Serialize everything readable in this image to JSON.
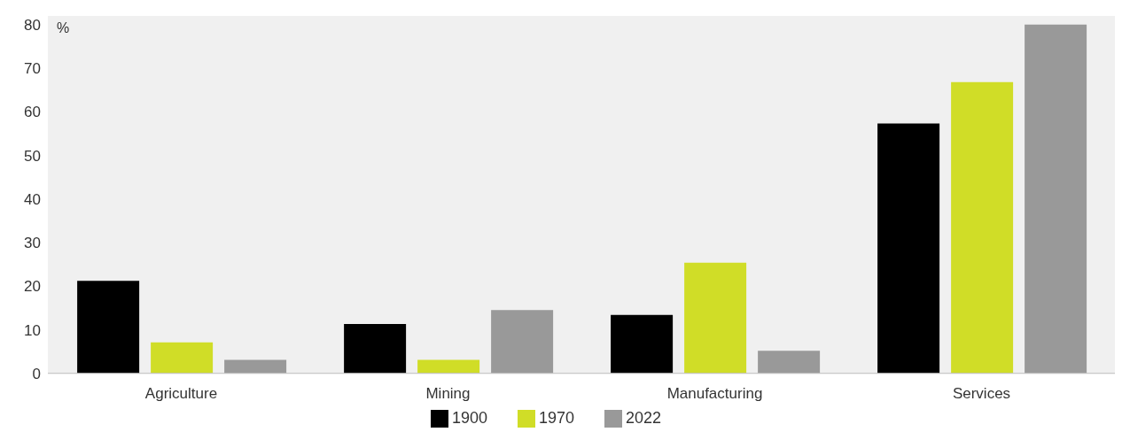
{
  "chart_data": {
    "type": "bar",
    "ylabel": "%",
    "categories": [
      "Agriculture",
      "Mining",
      "Manufacturing",
      "Services"
    ],
    "series": [
      {
        "name": "1900",
        "color": "#000000",
        "values": [
          21.2,
          11.3,
          13.4,
          57.3
        ]
      },
      {
        "name": "1970",
        "color": "#d0dd27",
        "values": [
          7.1,
          3.1,
          25.4,
          66.8
        ]
      },
      {
        "name": "2022",
        "color": "#999999",
        "values": [
          3.1,
          14.5,
          5.2,
          80
        ]
      }
    ],
    "ylim": [
      0,
      82
    ],
    "yticks": [
      0,
      10,
      20,
      30,
      40,
      50,
      60,
      70,
      80
    ],
    "grid": false,
    "legend": "bottom"
  }
}
